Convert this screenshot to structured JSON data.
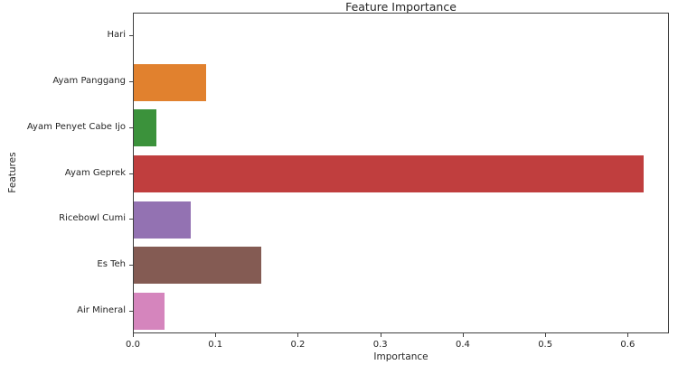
{
  "chart_data": {
    "type": "bar",
    "orientation": "horizontal",
    "title": "Feature Importance",
    "xlabel": "Importance",
    "ylabel": "Features",
    "categories": [
      "Hari",
      "Ayam Panggang",
      "Ayam Penyet Cabe Ijo",
      "Ayam Geprek",
      "Ricebowl Cumi",
      "Es Teh",
      "Air Mineral"
    ],
    "values": [
      0.0,
      0.088,
      0.027,
      0.62,
      0.069,
      0.155,
      0.037
    ],
    "bar_colors": [
      "#3274a1",
      "#e1812e",
      "#3b923b",
      "#c03e3e",
      "#9372b2",
      "#845b53",
      "#d585bd"
    ],
    "xlim": [
      0,
      0.65
    ],
    "xticks": [
      "0.0",
      "0.1",
      "0.2",
      "0.3",
      "0.4",
      "0.5",
      "0.6"
    ],
    "xtick_values": [
      0.0,
      0.1,
      0.2,
      0.3,
      0.4,
      0.5,
      0.6
    ],
    "grid": "off",
    "legend": "none",
    "spine_color": "#404040",
    "background_color": "#ffffff"
  }
}
